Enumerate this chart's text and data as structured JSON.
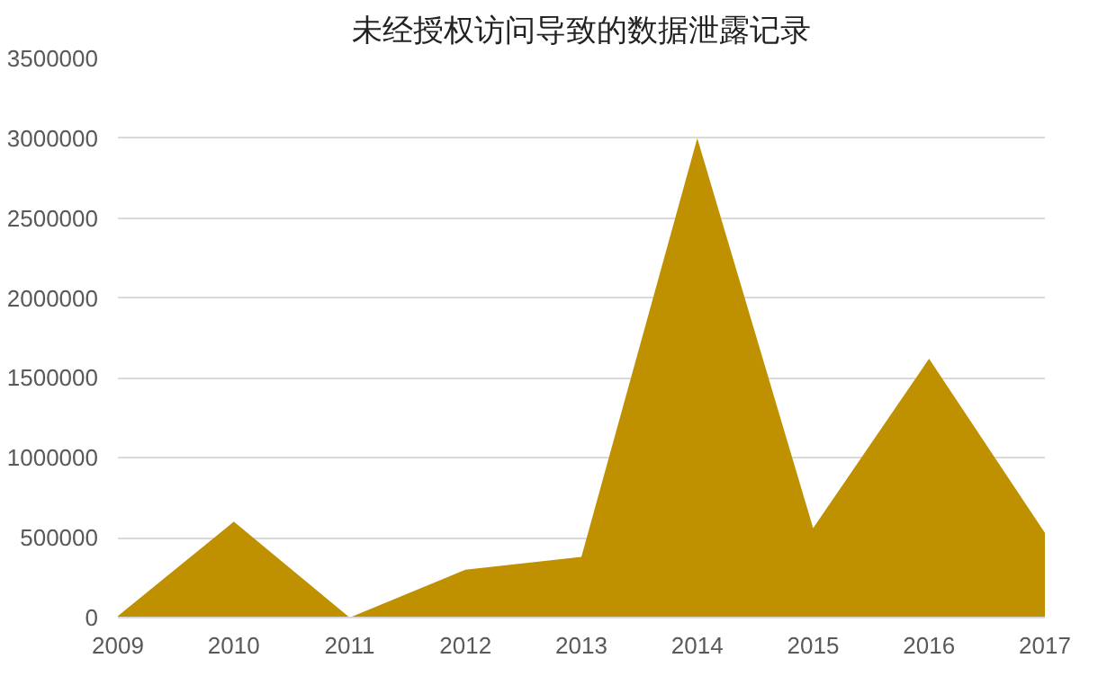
{
  "chart_data": {
    "type": "area",
    "title": "未经授权访问导致的数据泄露记录",
    "categories": [
      "2009",
      "2010",
      "2011",
      "2012",
      "2013",
      "2014",
      "2015",
      "2016",
      "2017"
    ],
    "values": [
      10000,
      600000,
      0,
      300000,
      380000,
      3000000,
      560000,
      1620000,
      530000
    ],
    "color": "#bf9000",
    "ylim": [
      0,
      3500000
    ],
    "yticks": [
      0,
      500000,
      1000000,
      1500000,
      2000000,
      2500000,
      3000000,
      3500000
    ],
    "grid": "y"
  }
}
